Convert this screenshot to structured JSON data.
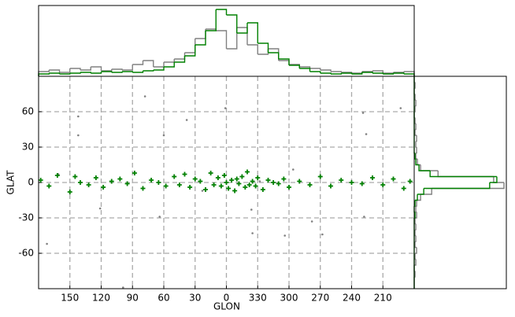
{
  "chart_data": {
    "type": "scatter",
    "xlabel": "GLON",
    "ylabel": "GLAT",
    "xlim": [
      180,
      -180
    ],
    "xticks": [
      150,
      120,
      90,
      60,
      30,
      0,
      {
        "value": -30,
        "label": "330"
      },
      {
        "value": -60,
        "label": "300"
      },
      {
        "value": -90,
        "label": "270"
      },
      {
        "value": -120,
        "label": "240"
      },
      {
        "value": -150,
        "label": "210"
      }
    ],
    "ylim": [
      -90,
      90
    ],
    "yticks": [
      -60,
      -30,
      0,
      30,
      60
    ],
    "grid": true,
    "series": [
      {
        "color": "#808080",
        "marker": "dot",
        "x": [
          78,
          142,
          142,
          121,
          172,
          60,
          38,
          1,
          -24,
          -25,
          -56,
          -82,
          -92,
          -134,
          -131,
          -167,
          -132,
          99,
          64,
          -64,
          161,
          23,
          -32
        ],
        "y": [
          73,
          56,
          40,
          -22,
          -52,
          40,
          53,
          63,
          -23,
          -43,
          -45,
          -33,
          -44,
          41,
          59,
          63,
          -29,
          -89,
          -29,
          11,
          7,
          -7,
          1
        ]
      },
      {
        "color": "#008000",
        "marker": "plus",
        "x": [
          178,
          170,
          162,
          150,
          145,
          140,
          132,
          125,
          118,
          110,
          102,
          95,
          88,
          80,
          72,
          65,
          58,
          50,
          45,
          40,
          35,
          30,
          25,
          20,
          15,
          12,
          8,
          5,
          2,
          0,
          -2,
          -5,
          -8,
          -10,
          -12,
          -15,
          -18,
          -20,
          -22,
          -25,
          -28,
          -30,
          -35,
          -40,
          -45,
          -50,
          -55,
          -60,
          -70,
          -80,
          -90,
          -100,
          -110,
          -120,
          -130,
          -140,
          -150,
          -160,
          -170,
          -176
        ],
        "y": [
          2,
          -3,
          6,
          -8,
          5,
          0,
          -2,
          4,
          -4,
          1,
          3,
          -1,
          8,
          -5,
          2,
          0,
          -3,
          5,
          -2,
          7,
          -4,
          3,
          1,
          -6,
          8,
          -2,
          4,
          -3,
          6,
          0,
          -5,
          2,
          -7,
          3,
          -1,
          5,
          -4,
          9,
          -2,
          1,
          -3,
          4,
          -6,
          2,
          0,
          -1,
          3,
          -4,
          1,
          -2,
          5,
          -3,
          2,
          0,
          -1,
          4,
          -2,
          3,
          -5,
          1
        ]
      }
    ],
    "x_histogram": {
      "type": "histogram",
      "bins": [
        -180,
        -170,
        -160,
        -150,
        -140,
        -130,
        -120,
        -110,
        -100,
        -90,
        -80,
        -70,
        -60,
        -50,
        -40,
        -30,
        -20,
        -10,
        0,
        10,
        20,
        30,
        40,
        50,
        60,
        70,
        80,
        90,
        100,
        110,
        120,
        130,
        140,
        150,
        160,
        170,
        180
      ],
      "series": [
        {
          "color": "#808080",
          "counts": [
            6,
            5,
            4,
            7,
            6,
            4,
            5,
            6,
            8,
            10,
            12,
            15,
            20,
            35,
            28,
            40,
            62,
            35,
            58,
            60,
            48,
            30,
            22,
            18,
            12,
            20,
            15,
            8,
            9,
            7,
            12,
            8,
            10,
            5,
            8,
            6
          ]
        },
        {
          "color": "#008000",
          "counts": [
            3,
            4,
            3,
            4,
            5,
            3,
            4,
            3,
            4,
            6,
            10,
            14,
            22,
            30,
            42,
            68,
            55,
            78,
            85,
            58,
            40,
            26,
            18,
            12,
            8,
            7,
            5,
            6,
            5,
            6,
            4,
            5,
            4,
            3,
            4,
            3
          ]
        }
      ]
    },
    "y_histogram": {
      "type": "histogram",
      "bins": [
        -90,
        -85,
        -80,
        -75,
        -70,
        -65,
        -60,
        -55,
        -50,
        -45,
        -40,
        -35,
        -30,
        -25,
        -20,
        -15,
        -10,
        -5,
        0,
        5,
        10,
        15,
        20,
        25,
        30,
        35,
        40,
        45,
        50,
        55,
        60,
        65,
        70,
        75,
        80,
        85,
        90
      ],
      "series": [
        {
          "color": "#808080",
          "counts": [
            0,
            0,
            1,
            0,
            2,
            1,
            3,
            1,
            2,
            1,
            2,
            1,
            3,
            2,
            3,
            8,
            22,
            113,
            100,
            30,
            8,
            4,
            2,
            3,
            2,
            3,
            1,
            2,
            1,
            0,
            1,
            2,
            1,
            0,
            1,
            0
          ]
        },
        {
          "color": "#008000",
          "counts": [
            0,
            0,
            0,
            0,
            0,
            0,
            0,
            0,
            0,
            0,
            0,
            0,
            1,
            0,
            1,
            4,
            12,
            95,
            104,
            20,
            6,
            2,
            1,
            0,
            0,
            0,
            0,
            0,
            0,
            0,
            0,
            0,
            0,
            0,
            0,
            0
          ]
        }
      ]
    }
  }
}
